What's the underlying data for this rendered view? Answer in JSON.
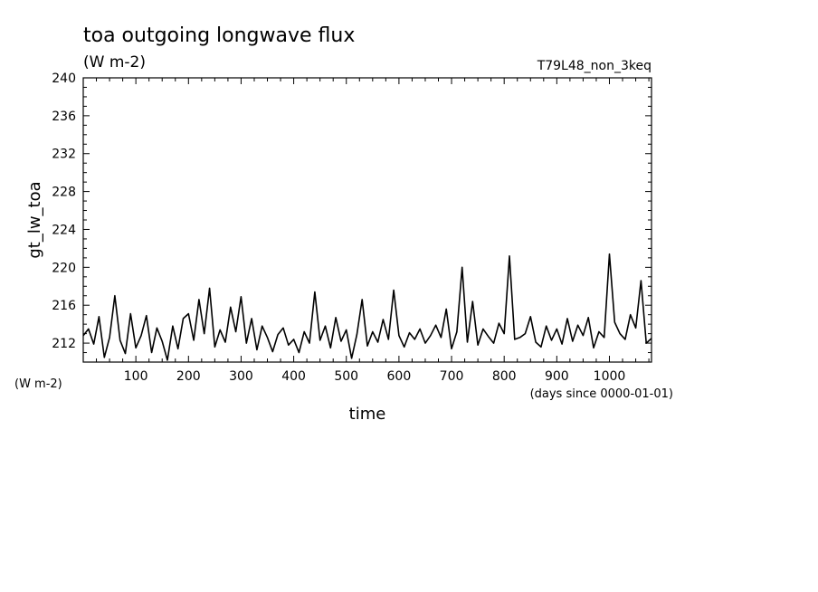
{
  "chart_data": {
    "type": "line",
    "title": "toa outgoing longwave flux",
    "subtitle": "(W m-2)",
    "run_label": "T79L48_non_3keq",
    "ylabel": "gt_lw_toa",
    "yunit": "(W m-2)",
    "xlabel": "time",
    "xunit": "(days since 0000-01-01)",
    "xlim": [
      0,
      1080
    ],
    "ylim": [
      210,
      240
    ],
    "x_ticks": [
      100,
      200,
      300,
      400,
      500,
      600,
      700,
      800,
      900,
      1000
    ],
    "y_ticks": [
      212,
      216,
      220,
      224,
      228,
      232,
      236,
      240
    ],
    "line_color": "#000000",
    "grid": false,
    "series": [
      {
        "x": [
          0,
          10,
          20,
          30,
          40,
          50,
          60,
          70,
          80,
          90,
          100,
          110,
          120,
          130,
          140,
          150,
          160,
          170,
          180,
          190,
          200,
          210,
          220,
          230,
          240,
          250,
          260,
          270,
          280,
          290,
          300,
          310,
          320,
          330,
          340,
          350,
          360,
          370,
          380,
          390,
          400,
          410,
          420,
          430,
          440,
          450,
          460,
          470,
          480,
          490,
          500,
          510,
          520,
          530,
          540,
          550,
          560,
          570,
          580,
          590,
          600,
          610,
          620,
          630,
          640,
          650,
          660,
          670,
          680,
          690,
          700,
          710,
          720,
          730,
          740,
          750,
          760,
          770,
          780,
          790,
          800,
          810,
          820,
          830,
          840,
          850,
          860,
          870,
          880,
          890,
          900,
          910,
          920,
          930,
          940,
          950,
          960,
          970,
          980,
          990,
          1000,
          1010,
          1020,
          1030,
          1040,
          1050,
          1060,
          1070,
          1080
        ],
        "values": [
          212.8,
          213.5,
          211.9,
          214.8,
          210.5,
          212.6,
          217.0,
          212.3,
          210.9,
          215.1,
          211.5,
          212.8,
          214.9,
          211.0,
          213.6,
          212.2,
          210.2,
          213.8,
          211.4,
          214.6,
          215.1,
          212.3,
          216.6,
          213.0,
          217.8,
          211.6,
          213.4,
          212.1,
          215.8,
          213.2,
          216.9,
          212.0,
          214.6,
          211.3,
          213.8,
          212.6,
          211.1,
          212.9,
          213.6,
          211.8,
          212.4,
          211.0,
          213.2,
          212.0,
          217.4,
          212.3,
          213.8,
          211.5,
          214.7,
          212.2,
          213.4,
          210.4,
          212.9,
          216.6,
          211.7,
          213.2,
          212.1,
          214.5,
          212.4,
          217.6,
          212.8,
          211.6,
          213.1,
          212.4,
          213.5,
          212.0,
          212.8,
          213.9,
          212.6,
          215.6,
          211.4,
          213.2,
          220.0,
          212.1,
          216.4,
          211.8,
          213.5,
          212.7,
          212.0,
          214.1,
          213.0,
          221.2,
          212.4,
          212.6,
          213.0,
          214.8,
          212.1,
          211.6,
          213.8,
          212.3,
          213.5,
          211.9,
          214.6,
          212.2,
          213.9,
          212.8,
          214.7,
          211.5,
          213.2,
          212.6,
          221.4,
          214.2,
          213.0,
          212.4,
          215.0,
          213.6,
          218.6,
          212.0,
          212.5
        ]
      }
    ]
  }
}
